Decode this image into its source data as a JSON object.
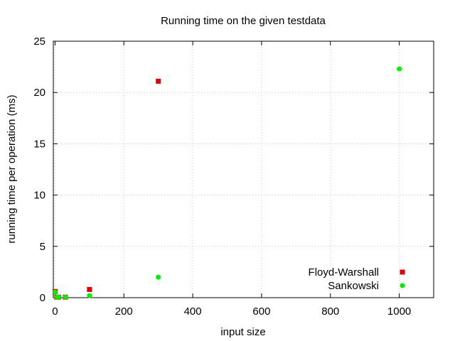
{
  "chart_data": {
    "type": "scatter",
    "title": "Running time on the given testdata",
    "xlabel": "input size",
    "ylabel": "running time per operation (ms)",
    "xlim": [
      -5,
      1100
    ],
    "ylim": [
      0,
      25
    ],
    "xticks": [
      0,
      200,
      400,
      600,
      800,
      1000
    ],
    "yticks": [
      0,
      5,
      10,
      15,
      20,
      25
    ],
    "grid": true,
    "legend_position": "bottom-right",
    "series": [
      {
        "name": "Floyd-Warshall",
        "marker": "square",
        "color": "#e00000",
        "x": [
          0,
          5,
          10,
          30,
          100,
          300
        ],
        "y": [
          0.6,
          0.05,
          0.05,
          0.05,
          0.8,
          21.1
        ]
      },
      {
        "name": "Sankowski",
        "marker": "circle",
        "color": "#00ee00",
        "x": [
          0,
          5,
          10,
          30,
          100,
          300,
          1000
        ],
        "y": [
          0.55,
          0.05,
          0.05,
          0.05,
          0.2,
          2.0,
          22.3
        ]
      }
    ]
  }
}
